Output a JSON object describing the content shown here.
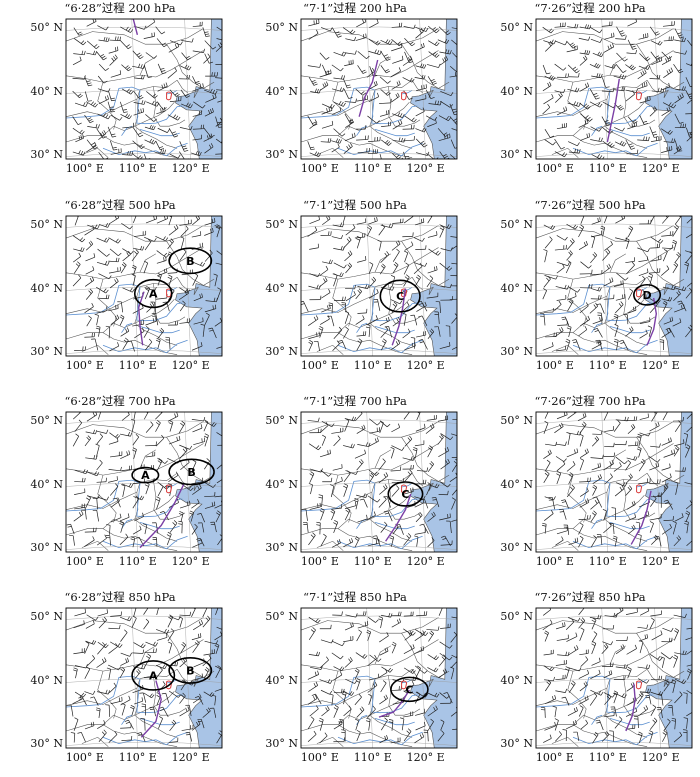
{
  "colors": {
    "sea": "#a9c4e6",
    "river": "#5b8fd0",
    "trough": "#7b3fa5",
    "station": "#d93a3a",
    "circle": "#000000",
    "border": "#555555",
    "wind": "#222222"
  },
  "axis": {
    "lat_labels": [
      "50° N",
      "40° N",
      "30° N"
    ],
    "lon_labels": [
      "100° E",
      "110° E",
      "120° E"
    ]
  },
  "panels": [
    {
      "title": "“6·28”过程  200 hPa",
      "circles": [],
      "trough": [
        [
          -2,
          78
        ],
        [
          -1,
          68
        ],
        [
          0,
          57
        ],
        [
          1,
          49
        ]
      ]
    },
    {
      "title": "“7·1”过程  200 hPa",
      "circles": [],
      "trough": [
        [
          0,
          36
        ],
        [
          0.4,
          39
        ],
        [
          1,
          41.5
        ],
        [
          1.4,
          45
        ]
      ]
    },
    {
      "title": "“7·26”过程  200 hPa",
      "circles": [],
      "trough": [
        [
          1,
          32
        ],
        [
          1.3,
          35
        ],
        [
          1.6,
          38
        ],
        [
          1.9,
          42
        ]
      ]
    },
    {
      "title": "“6·28”过程  500 hPa",
      "circles": [
        {
          "label": "A",
          "cx": 2.2,
          "cy": 39.2,
          "rx": 1.4,
          "ry": 2.2
        },
        {
          "label": "B",
          "cx": 5.0,
          "cy": 44.4,
          "rx": 1.6,
          "ry": 2.0
        }
      ],
      "trough": [
        [
          1.4,
          31
        ],
        [
          1.2,
          34
        ],
        [
          1.1,
          37
        ],
        [
          1.5,
          39.5
        ]
      ]
    },
    {
      "title": "“7·1”过程  500 hPa",
      "circles": [
        {
          "label": "C",
          "cx": 3.1,
          "cy": 38.8,
          "rx": 1.5,
          "ry": 2.5
        }
      ],
      "trough": [
        [
          2.5,
          31
        ],
        [
          3.0,
          34
        ],
        [
          3.3,
          37
        ],
        [
          3.5,
          40
        ]
      ]
    },
    {
      "title": "“7·26”过程  500 hPa",
      "circles": [
        {
          "label": "D",
          "cx": 4.0,
          "cy": 39.0,
          "rx": 1.0,
          "ry": 1.6
        }
      ],
      "trough": [
        [
          4.0,
          31
        ],
        [
          4.5,
          33.5
        ],
        [
          4.7,
          36
        ],
        [
          4.5,
          38.5
        ]
      ]
    },
    {
      "title": "“6·28”过程  700 hPa",
      "circles": [
        {
          "label": "A",
          "cx": 1.6,
          "cy": 41.5,
          "rx": 1.0,
          "ry": 1.2
        },
        {
          "label": "B",
          "cx": 5.1,
          "cy": 42.0,
          "rx": 1.7,
          "ry": 2.0
        }
      ],
      "trough": [
        [
          1.2,
          30
        ],
        [
          2.8,
          33.5
        ],
        [
          3.8,
          37
        ],
        [
          4.5,
          40
        ]
      ]
    },
    {
      "title": "“7·1”过程  700 hPa",
      "circles": [
        {
          "label": "C",
          "cx": 3.5,
          "cy": 38.5,
          "rx": 1.3,
          "ry": 1.9
        }
      ],
      "trough": [
        [
          2.0,
          31
        ],
        [
          2.8,
          33.5
        ],
        [
          3.5,
          36
        ],
        [
          3.9,
          38.5
        ]
      ]
    },
    {
      "title": "“7·26”过程  700 hPa",
      "circles": [],
      "trough": [
        [
          2.8,
          30.5
        ],
        [
          3.6,
          33.5
        ],
        [
          4.0,
          36
        ],
        [
          4.3,
          39
        ]
      ]
    },
    {
      "title": "“6·28”过程  850 hPa",
      "circles": [
        {
          "label": "A",
          "cx": 2.2,
          "cy": 40.8,
          "rx": 1.6,
          "ry": 2.3
        },
        {
          "label": "B",
          "cx": 5.0,
          "cy": 41.6,
          "rx": 1.6,
          "ry": 2.0
        }
      ],
      "trough": [
        [
          1.3,
          31
        ],
        [
          2.4,
          33.5
        ],
        [
          2.8,
          37
        ],
        [
          2.4,
          40
        ]
      ]
    },
    {
      "title": "“7·1”过程  850 hPa",
      "circles": [
        {
          "label": "C",
          "cx": 3.8,
          "cy": 38.6,
          "rx": 1.4,
          "ry": 1.9
        }
      ],
      "trough": [
        [
          1.5,
          34.2
        ],
        [
          2.6,
          35
        ],
        [
          3.2,
          36.5
        ],
        [
          3.8,
          38.5
        ]
      ]
    },
    {
      "title": "“7·26”过程  850 hPa",
      "circles": [],
      "trough": [
        [
          2.4,
          32
        ],
        [
          2.9,
          34.5
        ],
        [
          3.1,
          37
        ],
        [
          3.0,
          39.5
        ]
      ]
    }
  ]
}
